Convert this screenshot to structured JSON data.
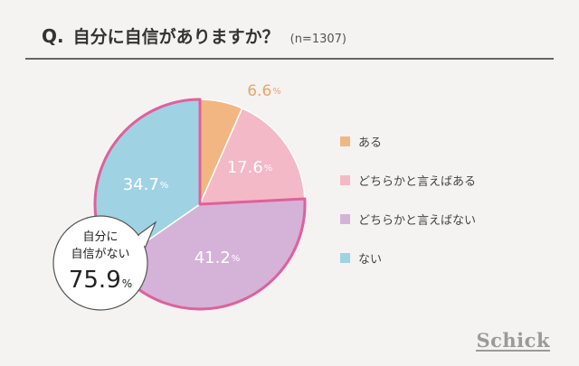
{
  "title": {
    "q": "Q.",
    "text": "自分に自信がありますか？",
    "n": "(n=1307)"
  },
  "chart_data": {
    "type": "pie",
    "title": "自分に自信がありますか？ (n=1307)",
    "categories": [
      "ある",
      "どちらかと言えばある",
      "どちらかと言えばない",
      "ない"
    ],
    "values": [
      6.6,
      17.6,
      41.2,
      34.7
    ],
    "unit": "%",
    "colors": [
      "#f2b682",
      "#f4b9c6",
      "#d5b3d8",
      "#9fd3e3"
    ],
    "labels": [
      {
        "value": "6.6",
        "unit": "%"
      },
      {
        "value": "17.6",
        "unit": "%"
      },
      {
        "value": "41.2",
        "unit": "%"
      },
      {
        "value": "34.7",
        "unit": "%"
      }
    ],
    "highlight": {
      "text_line1": "自分に",
      "text_line2": "自信がない",
      "value": "75.9",
      "unit": "%",
      "outline_color": "#e0609a"
    },
    "legend_position": "right"
  },
  "legend": [
    {
      "label": "ある",
      "color": "#f2b682"
    },
    {
      "label": "どちらかと言えばある",
      "color": "#f4b9c6"
    },
    {
      "label": "どちらかと言えばない",
      "color": "#d5b3d8"
    },
    {
      "label": "ない",
      "color": "#9fd3e3"
    }
  ],
  "brand": "Schick"
}
